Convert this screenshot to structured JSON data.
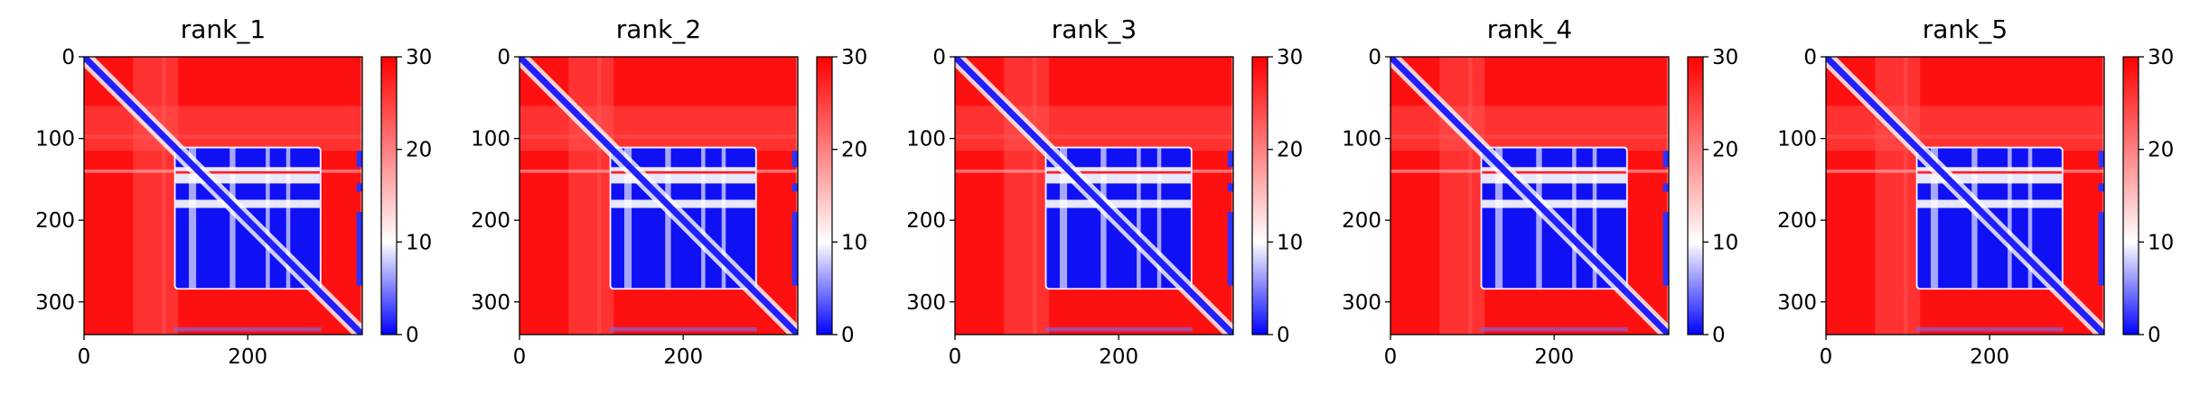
{
  "chart_data": [
    {
      "type": "heatmap",
      "title": "rank_1",
      "x_ticks": [
        0,
        200
      ],
      "y_ticks": [
        0,
        100,
        200,
        300
      ],
      "xlim": [
        0,
        340
      ],
      "ylim": [
        340,
        0
      ],
      "colorbar": {
        "ticks": [
          0,
          10,
          20,
          30
        ],
        "range": [
          0,
          30
        ],
        "colors": [
          "#0000ff",
          "#ffffff",
          "#ff0000"
        ]
      }
    },
    {
      "type": "heatmap",
      "title": "rank_2",
      "x_ticks": [
        0,
        200
      ],
      "y_ticks": [
        0,
        100,
        200,
        300
      ],
      "xlim": [
        0,
        340
      ],
      "ylim": [
        340,
        0
      ],
      "colorbar": {
        "ticks": [
          0,
          10,
          20,
          30
        ],
        "range": [
          0,
          30
        ],
        "colors": [
          "#0000ff",
          "#ffffff",
          "#ff0000"
        ]
      }
    },
    {
      "type": "heatmap",
      "title": "rank_3",
      "x_ticks": [
        0,
        200
      ],
      "y_ticks": [
        0,
        100,
        200,
        300
      ],
      "xlim": [
        0,
        340
      ],
      "ylim": [
        340,
        0
      ],
      "colorbar": {
        "ticks": [
          0,
          10,
          20,
          30
        ],
        "range": [
          0,
          30
        ],
        "colors": [
          "#0000ff",
          "#ffffff",
          "#ff0000"
        ]
      }
    },
    {
      "type": "heatmap",
      "title": "rank_4",
      "x_ticks": [
        0,
        200
      ],
      "y_ticks": [
        0,
        100,
        200,
        300
      ],
      "xlim": [
        0,
        340
      ],
      "ylim": [
        340,
        0
      ],
      "colorbar": {
        "ticks": [
          0,
          10,
          20,
          30
        ],
        "range": [
          0,
          30
        ],
        "colors": [
          "#0000ff",
          "#ffffff",
          "#ff0000"
        ]
      }
    },
    {
      "type": "heatmap",
      "title": "rank_5",
      "x_ticks": [
        0,
        200
      ],
      "y_ticks": [
        0,
        100,
        200,
        300
      ],
      "xlim": [
        0,
        340
      ],
      "ylim": [
        340,
        0
      ],
      "colorbar": {
        "ticks": [
          0,
          10,
          20,
          30
        ],
        "range": [
          0,
          30
        ],
        "colors": [
          "#0000ff",
          "#ffffff",
          "#ff0000"
        ]
      }
    }
  ]
}
